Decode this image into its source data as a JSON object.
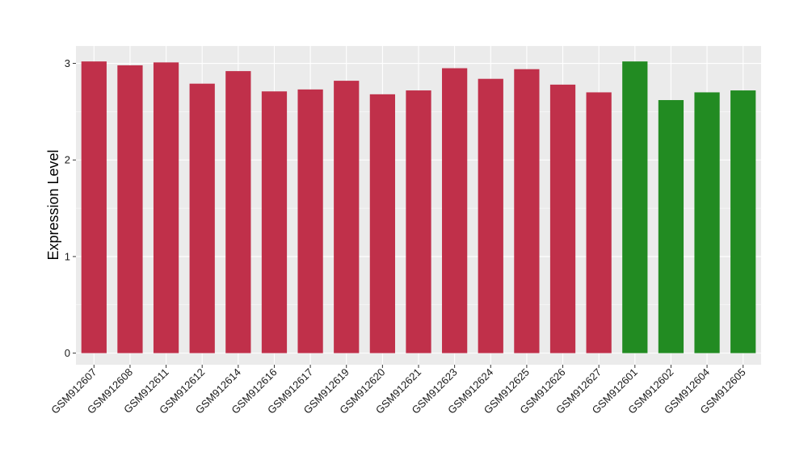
{
  "chart_data": {
    "type": "bar",
    "title": "",
    "xlabel": "",
    "ylabel": "Expression Level",
    "ylim": [
      -0.12,
      3.18
    ],
    "yticks": [
      0,
      1,
      2,
      3
    ],
    "grid": true,
    "legend": "none",
    "categories": [
      "GSM912607",
      "GSM912608",
      "GSM912611",
      "GSM912612",
      "GSM912614",
      "GSM912616",
      "GSM912617",
      "GSM912619",
      "GSM912620",
      "GSM912621",
      "GSM912623",
      "GSM912624",
      "GSM912625",
      "GSM912626",
      "GSM912627",
      "GSM912601",
      "GSM912602",
      "GSM912604",
      "GSM912605"
    ],
    "values": [
      3.02,
      2.98,
      3.01,
      2.79,
      2.92,
      2.71,
      2.73,
      2.82,
      2.68,
      2.72,
      2.95,
      2.84,
      2.94,
      2.78,
      2.7,
      3.02,
      2.62,
      2.7,
      2.72
    ],
    "bar_colors": [
      "#c0304a",
      "#c0304a",
      "#c0304a",
      "#c0304a",
      "#c0304a",
      "#c0304a",
      "#c0304a",
      "#c0304a",
      "#c0304a",
      "#c0304a",
      "#c0304a",
      "#c0304a",
      "#c0304a",
      "#c0304a",
      "#c0304a",
      "#228b22",
      "#228b22",
      "#228b22",
      "#228b22"
    ],
    "panel_background": "#ebebeb",
    "grid_color": "#ffffff"
  }
}
